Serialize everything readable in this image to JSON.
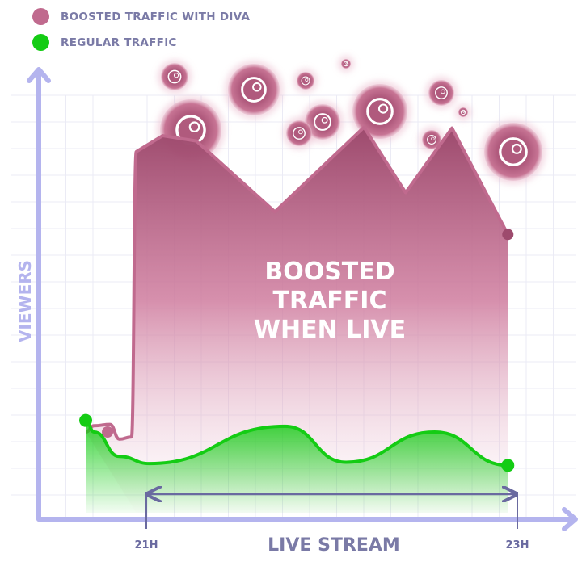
{
  "legend": {
    "boosted_label": "BOOSTED TRAFFIC WITH DIVA",
    "regular_label": "REGULAR TRAFFIC"
  },
  "colors": {
    "boosted": "#a04f72",
    "boosted_dot": "#c06a8e",
    "regular": "#14cc14",
    "axis": "#b4b4ee",
    "grid": "#ebebf5",
    "annotation_text": "#ffffff",
    "axis_label": "#7a7aa6",
    "range_arrow": "#6a6aa0"
  },
  "chart_data": {
    "type": "area",
    "title": "",
    "xlabel": "LIVE STREAM",
    "ylabel": "VIEWERS",
    "x_ticks": [
      "21H",
      "23H"
    ],
    "annotation": [
      "BOOSTED",
      "TRAFFIC",
      "WHEN LIVE"
    ],
    "xlim": [
      0,
      100
    ],
    "ylim": [
      0,
      100
    ],
    "grid": true,
    "legend_position": "top-left",
    "series": [
      {
        "name": "BOOSTED TRAFFIC WITH DIVA",
        "points": [
          [
            8.9,
            19.6
          ],
          [
            10.5,
            21.0
          ],
          [
            13.5,
            21.3
          ],
          [
            15.3,
            18.0
          ],
          [
            17.6,
            18.5
          ],
          [
            18.5,
            82.6
          ],
          [
            23.5,
            86.2
          ],
          [
            29.9,
            85.0
          ],
          [
            44.8,
            69.1
          ],
          [
            61.7,
            88.1
          ],
          [
            69.6,
            73.4
          ],
          [
            78.4,
            87.9
          ],
          [
            89.0,
            64.0
          ]
        ]
      },
      {
        "name": "REGULAR TRAFFIC",
        "points": [
          [
            8.9,
            22.2
          ],
          [
            10.5,
            19.6
          ],
          [
            15.3,
            14.1
          ],
          [
            21.0,
            12.5
          ],
          [
            46.7,
            20.9
          ],
          [
            58.3,
            12.8
          ],
          [
            75.1,
            19.6
          ],
          [
            89.0,
            12.1
          ]
        ]
      }
    ]
  }
}
